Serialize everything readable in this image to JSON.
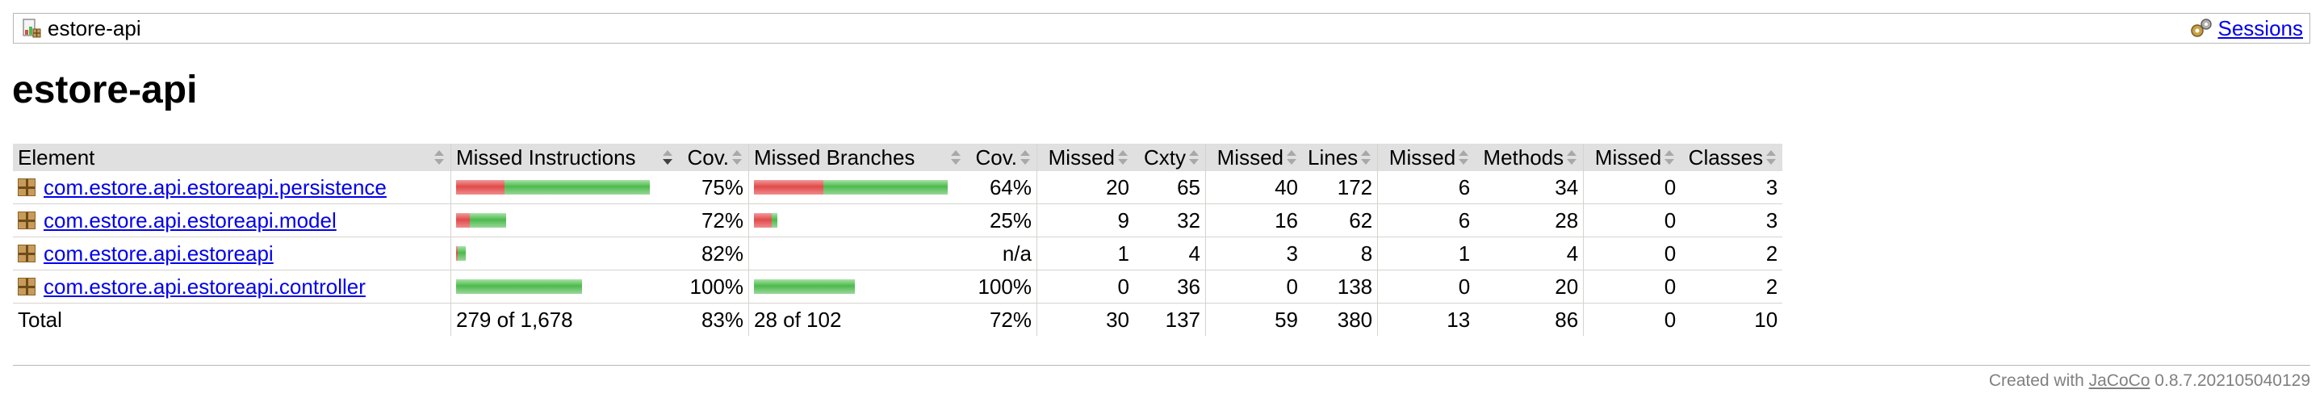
{
  "breadcrumb": {
    "title": "estore-api",
    "title_icon": "package-report-icon",
    "sessions_label": "Sessions",
    "sessions_icon": "sessions-icon"
  },
  "page_title": "estore-api",
  "table": {
    "headers": [
      "Element",
      "Missed Instructions",
      "Cov.",
      "Missed Branches",
      "Cov.",
      "Missed",
      "Cxty",
      "Missed",
      "Lines",
      "Missed",
      "Methods",
      "Missed",
      "Classes"
    ],
    "rows": [
      {
        "name": "com.estore.api.estoreapi.persistence",
        "instr_missed_frac": 0.25,
        "instr_cov_frac": 0.75,
        "instr_bar_scale": 1.0,
        "instr_cov": "75%",
        "br_missed_frac": 0.36,
        "br_cov_frac": 0.64,
        "br_bar_scale": 1.0,
        "br_cov": "64%",
        "cxty_missed": "20",
        "cxty": "65",
        "lines_missed": "40",
        "lines": "172",
        "methods_missed": "6",
        "methods": "34",
        "classes_missed": "0",
        "classes": "3"
      },
      {
        "name": "com.estore.api.estoreapi.model",
        "instr_missed_frac": 0.28,
        "instr_cov_frac": 0.72,
        "instr_bar_scale": 0.26,
        "instr_cov": "72%",
        "br_missed_frac": 0.75,
        "br_cov_frac": 0.25,
        "br_bar_scale": 0.12,
        "br_cov": "25%",
        "cxty_missed": "9",
        "cxty": "32",
        "lines_missed": "16",
        "lines": "62",
        "methods_missed": "6",
        "methods": "28",
        "classes_missed": "0",
        "classes": "3"
      },
      {
        "name": "com.estore.api.estoreapi",
        "instr_missed_frac": 0.18,
        "instr_cov_frac": 0.82,
        "instr_bar_scale": 0.05,
        "instr_cov": "82%",
        "br_missed_frac": 0,
        "br_cov_frac": 0,
        "br_bar_scale": 0,
        "br_cov": "n/a",
        "cxty_missed": "1",
        "cxty": "4",
        "lines_missed": "3",
        "lines": "8",
        "methods_missed": "1",
        "methods": "4",
        "classes_missed": "0",
        "classes": "2"
      },
      {
        "name": "com.estore.api.estoreapi.controller",
        "instr_missed_frac": 0,
        "instr_cov_frac": 1.0,
        "instr_bar_scale": 0.65,
        "instr_cov": "100%",
        "br_missed_frac": 0,
        "br_cov_frac": 1.0,
        "br_bar_scale": 0.52,
        "br_cov": "100%",
        "cxty_missed": "0",
        "cxty": "36",
        "lines_missed": "0",
        "lines": "138",
        "methods_missed": "0",
        "methods": "20",
        "classes_missed": "0",
        "classes": "2"
      }
    ],
    "total": {
      "label": "Total",
      "instr": "279 of 1,678",
      "instr_cov": "83%",
      "br": "28 of 102",
      "br_cov": "72%",
      "cxty_missed": "30",
      "cxty": "137",
      "lines_missed": "59",
      "lines": "380",
      "methods_missed": "13",
      "methods": "86",
      "classes_missed": "0",
      "classes": "10"
    }
  },
  "footer": {
    "prefix": "Created with ",
    "link": "JaCoCo",
    "version": " 0.8.7.202105040129"
  },
  "colors": {
    "missed": "#e04a4a",
    "covered": "#4cba4c",
    "header_bg": "#e0e0e0"
  }
}
